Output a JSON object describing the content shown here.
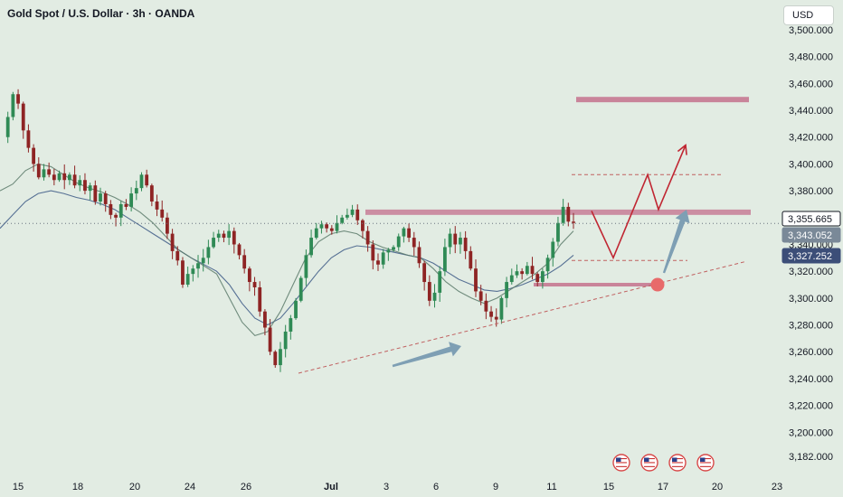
{
  "header": {
    "title": "Gold Spot / U.S. Dollar · 3h · OANDA",
    "currency_button": "USD"
  },
  "colors": {
    "background": "#e2ece3",
    "up_candle": "#2f8a55",
    "down_candle": "#8e2424",
    "resistance_zone": "#c9849a",
    "trendline": "#c06060",
    "arrow_blue": "#7e9fb4",
    "projection_red": "#c02632",
    "ma_line": "#4a6a8a"
  },
  "price_badges": [
    {
      "label": "3,355.665",
      "value": 3355.665,
      "bg": "#ffffff",
      "fg": "#131722",
      "border": "#131722"
    },
    {
      "label": "3,343.052",
      "value": 3343.052,
      "bg": "#7a8998",
      "fg": "#ffffff",
      "border": "#7a8998"
    },
    {
      "label": "3,327.252",
      "value": 3327.252,
      "bg": "#3c4e78",
      "fg": "#ffffff",
      "border": "#3c4e78"
    }
  ],
  "event_icons": [
    "us-flag-event-icon",
    "us-flag-event-icon",
    "us-flag-event-icon",
    "us-flag-event-icon"
  ],
  "chart_data": {
    "type": "candlestick",
    "symbol": "Gold Spot / U.S. Dollar",
    "timeframe": "3h",
    "ylim": [
      3175,
      3510
    ],
    "y_ticks": [
      {
        "value": 3500,
        "label": "3,500.000"
      },
      {
        "value": 3480,
        "label": "3,480.000"
      },
      {
        "value": 3460,
        "label": "3,460.000"
      },
      {
        "value": 3440,
        "label": "3,440.000"
      },
      {
        "value": 3420,
        "label": "3,420.000"
      },
      {
        "value": 3400,
        "label": "3,400.000"
      },
      {
        "value": 3380,
        "label": "3,380.000"
      },
      {
        "value": 3360,
        "label": "3,360.000"
      },
      {
        "value": 3340,
        "label": "3,340.000"
      },
      {
        "value": 3320,
        "label": "3,320.000"
      },
      {
        "value": 3300,
        "label": "3,300.000"
      },
      {
        "value": 3280,
        "label": "3,280.000"
      },
      {
        "value": 3260,
        "label": "3,260.000"
      },
      {
        "value": 3240,
        "label": "3,240.000"
      },
      {
        "value": 3220,
        "label": "3,220.000"
      },
      {
        "value": 3200,
        "label": "3,200.000"
      },
      {
        "value": 3182,
        "label": "3,182.000"
      }
    ],
    "x_ticks": [
      {
        "label": "15",
        "bold": false
      },
      {
        "label": "18",
        "bold": false
      },
      {
        "label": "20",
        "bold": false
      },
      {
        "label": "24",
        "bold": false
      },
      {
        "label": "26",
        "bold": false
      },
      {
        "label": "Jul",
        "bold": true
      },
      {
        "label": "3",
        "bold": false
      },
      {
        "label": "6",
        "bold": false
      },
      {
        "label": "9",
        "bold": false
      },
      {
        "label": "11",
        "bold": false
      },
      {
        "label": "15",
        "bold": false
      },
      {
        "label": "17",
        "bold": false
      },
      {
        "label": "20",
        "bold": false
      },
      {
        "label": "23",
        "bold": false
      }
    ],
    "price_path": [
      3420,
      3435,
      3452,
      3445,
      3425,
      3412,
      3400,
      3390,
      3396,
      3392,
      3388,
      3393,
      3388,
      3392,
      3384,
      3388,
      3380,
      3384,
      3372,
      3378,
      3370,
      3362,
      3360,
      3370,
      3368,
      3378,
      3382,
      3392,
      3384,
      3372,
      3366,
      3360,
      3348,
      3335,
      3328,
      3310,
      3318,
      3322,
      3326,
      3330,
      3338,
      3345,
      3348,
      3345,
      3350,
      3340,
      3332,
      3322,
      3312,
      3308,
      3290,
      3278,
      3260,
      3250,
      3262,
      3275,
      3285,
      3298,
      3315,
      3332,
      3345,
      3352,
      3355,
      3352,
      3350,
      3356,
      3360,
      3362,
      3366,
      3358,
      3350,
      3340,
      3328,
      3325,
      3334,
      3336,
      3338,
      3346,
      3352,
      3345,
      3338,
      3326,
      3312,
      3298,
      3304,
      3320,
      3338,
      3348,
      3340,
      3345,
      3335,
      3322,
      3305,
      3298,
      3290,
      3286,
      3284,
      3300,
      3312,
      3317,
      3320,
      3318,
      3324,
      3318,
      3312,
      3320,
      3330,
      3342,
      3356,
      3368,
      3357,
      3356
    ],
    "ma_fast": [
      3380,
      3385,
      3395,
      3400,
      3398,
      3392,
      3386,
      3382,
      3379,
      3375,
      3370,
      3364,
      3356,
      3346,
      3336,
      3330,
      3324,
      3318,
      3300,
      3282,
      3272,
      3275,
      3290,
      3310,
      3330,
      3342,
      3348,
      3350,
      3348,
      3342,
      3338,
      3335,
      3332,
      3330,
      3322,
      3312,
      3305,
      3300,
      3296,
      3300,
      3306,
      3312,
      3318,
      3326,
      3340,
      3350
    ],
    "ma_slow": [
      3352,
      3362,
      3372,
      3378,
      3380,
      3378,
      3375,
      3373,
      3370,
      3366,
      3360,
      3354,
      3348,
      3342,
      3336,
      3330,
      3325,
      3320,
      3310,
      3296,
      3285,
      3280,
      3285,
      3296,
      3308,
      3320,
      3330,
      3336,
      3339,
      3338,
      3336,
      3334,
      3332,
      3330,
      3326,
      3320,
      3314,
      3310,
      3306,
      3305,
      3307,
      3310,
      3314,
      3318,
      3324,
      3332
    ],
    "annotations": {
      "resistance_zone": [
        3362,
        3366
      ],
      "upper_target_zone": [
        3446,
        3450
      ],
      "dashed_target_level": 3392,
      "dashed_retest_level": 3328,
      "support_level": 3310,
      "trendline_low": 3244,
      "trendline_high": 3327,
      "touch_point": 3310,
      "projection_path": [
        3365,
        3330,
        3392,
        3366,
        3414
      ]
    }
  }
}
